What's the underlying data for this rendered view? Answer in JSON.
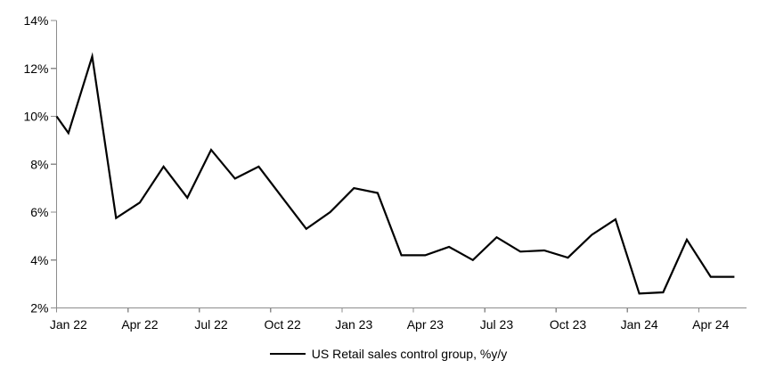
{
  "chart_data": {
    "type": "line",
    "legend": {
      "label": "US Retail sales control group, %y/y",
      "position": "bottom-center",
      "marker": "line"
    },
    "series": [
      {
        "name": "US Retail sales control group, %y/y",
        "color": "#000000",
        "x": [
          "Jan 22",
          "Feb 22",
          "Mar 22",
          "Apr 22",
          "May 22",
          "Jun 22",
          "Jul 22",
          "Aug 22",
          "Sep 22",
          "Oct 22",
          "Nov 22",
          "Dec 22",
          "Jan 23",
          "Feb 23",
          "Mar 23",
          "Apr 23",
          "May 23",
          "Jun 23",
          "Jul 23",
          "Aug 23",
          "Sep 23",
          "Oct 23",
          "Nov 23",
          "Dec 23",
          "Jan 24",
          "Feb 24",
          "Mar 24",
          "Apr 24",
          "May 24"
        ],
        "values": [
          9.3,
          12.5,
          5.75,
          6.4,
          7.9,
          6.6,
          8.6,
          7.4,
          7.9,
          6.6,
          5.3,
          6.0,
          7.0,
          6.8,
          4.2,
          4.2,
          4.55,
          4.0,
          4.95,
          4.35,
          4.4,
          4.1,
          5.05,
          5.7,
          2.6,
          2.65,
          4.85,
          3.3,
          3.3
        ],
        "entry_value_at_left_axis": 10.0
      }
    ],
    "x_axis": {
      "tick_labels": [
        "Jan 22",
        "Apr 22",
        "Jul 22",
        "Oct 22",
        "Jan 23",
        "Apr 23",
        "Jul 23",
        "Oct 23",
        "Jan 24",
        "Apr 24"
      ],
      "tick_every_months": 3,
      "labels_centered_between_ticks": true
    },
    "y_axis": {
      "min": 2,
      "max": 14,
      "step": 2,
      "tick_labels": [
        "2%",
        "4%",
        "6%",
        "8%",
        "10%",
        "12%",
        "14%"
      ],
      "format": "percent"
    },
    "grid": false,
    "colors": {
      "line": "#000000",
      "axis": "#8c8c8c",
      "text": "#000000",
      "background": "#ffffff"
    }
  }
}
